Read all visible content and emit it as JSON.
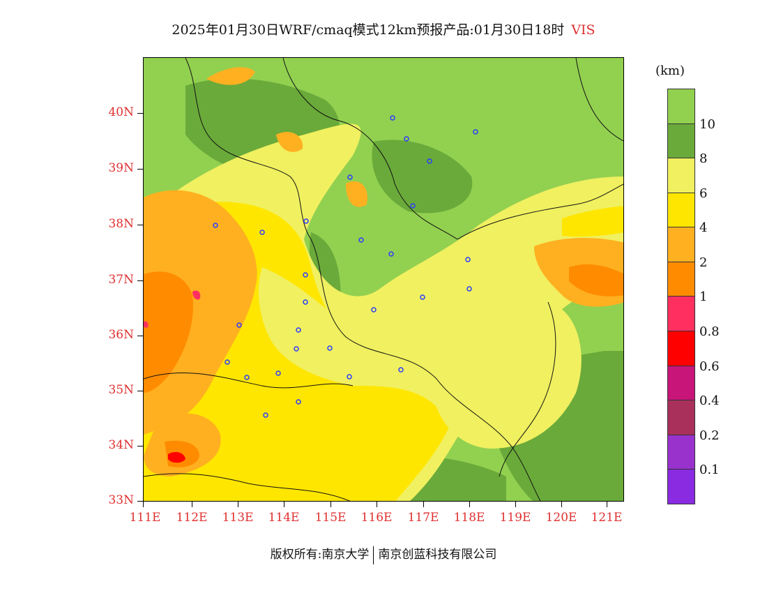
{
  "title": {
    "text": "2025年01月30日WRF/cmaq模式12km预报产品:01月30日18时",
    "variable": "VIS"
  },
  "map": {
    "y_axis_labels": [
      "40N",
      "39N",
      "38N",
      "37N",
      "36N",
      "35N",
      "34N",
      "33N"
    ],
    "x_axis_labels": [
      "111E",
      "112E",
      "113E",
      "114E",
      "115E",
      "116E",
      "117E",
      "118E",
      "119E",
      "120E",
      "121E"
    ],
    "lon_range": [
      111,
      121.4
    ],
    "lat_range": [
      33,
      40.9
    ],
    "label_color": "#e03030"
  },
  "legend": {
    "unit": "(km)",
    "labels": [
      "10",
      "8",
      "6",
      "4",
      "2",
      "1",
      "0.8",
      "0.6",
      "0.4",
      "0.2",
      "0.1"
    ],
    "colors": [
      "#92d050",
      "#6aaa3a",
      "#f0f060",
      "#ffe600",
      "#ffb020",
      "#ff8c00",
      "#ff3060",
      "#ff0000",
      "#c8157a",
      "#a8305a",
      "#9932cc",
      "#8a2be2"
    ]
  },
  "footer": {
    "left": "版权所有:南京大学",
    "right": "南京创蓝科技有限公司"
  }
}
